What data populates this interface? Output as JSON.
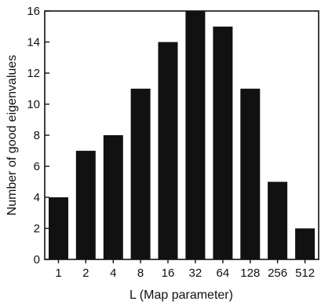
{
  "chart_data": {
    "type": "bar",
    "categories": [
      "1",
      "2",
      "4",
      "8",
      "16",
      "32",
      "64",
      "128",
      "256",
      "512"
    ],
    "values": [
      4,
      7,
      8,
      11,
      14,
      16,
      15,
      11,
      5,
      2
    ],
    "title": "",
    "xlabel": "L (Map parameter)",
    "ylabel": "Number of good eigenvalues",
    "ylim": [
      0,
      16
    ],
    "yticks": [
      0,
      2,
      4,
      6,
      8,
      10,
      12,
      14,
      16
    ],
    "grid": false,
    "bar_color": "#111111"
  }
}
